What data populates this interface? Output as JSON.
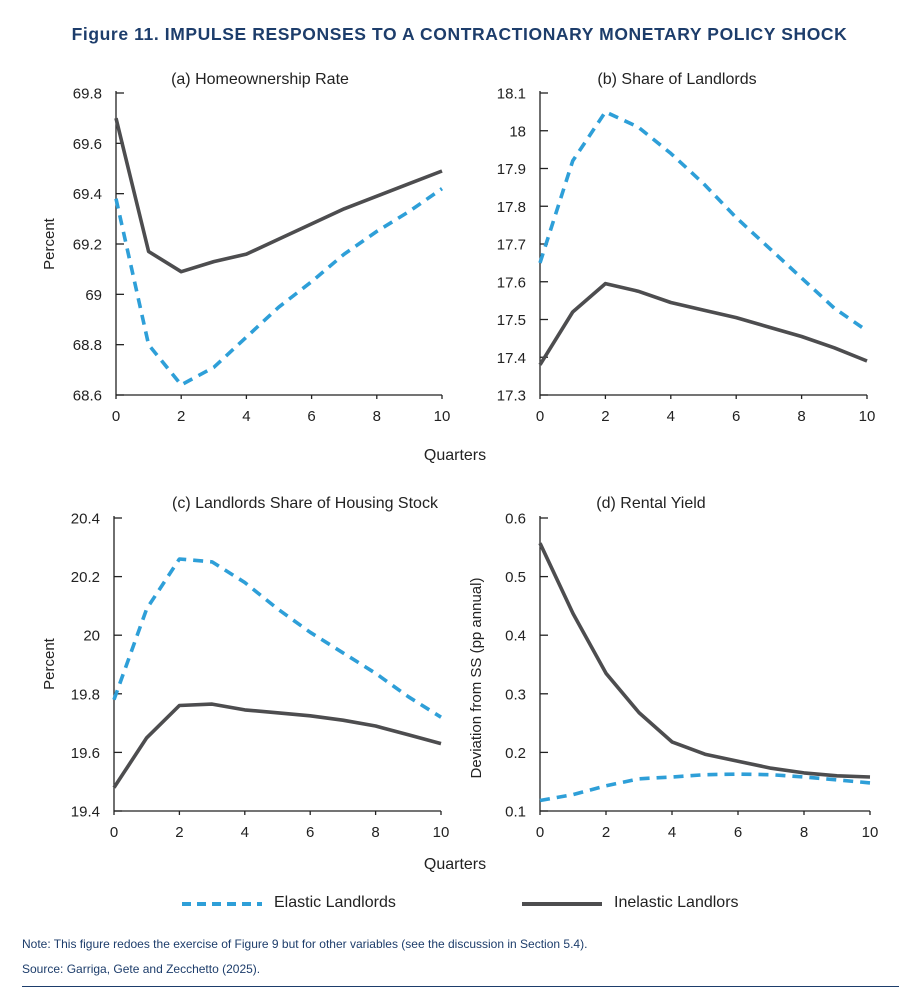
{
  "title": "Figure 11. IMPULSE RESPONSES TO A CONTRACTIONARY MONETARY POLICY SHOCK",
  "note": "Note: This figure redoes the exercise of Figure 9 but for other variables (see the discussion in Section 5.4).",
  "source": "Source: Garriga, Gete and Zecchetto (2025).",
  "shared_xlabel": "Quarters",
  "legend": {
    "elastic": "Elastic Landlords",
    "inelastic": "Inelastic Landlors"
  },
  "colors": {
    "elastic": "#2e9fd8",
    "inelastic": "#4d4d4f",
    "title": "#1d3d6b",
    "axis": "#222222"
  },
  "chart_data": [
    {
      "type": "line",
      "title": "(a) Homeownership Rate",
      "ylabel": "Percent",
      "xlim": [
        0,
        10
      ],
      "ylim": [
        68.6,
        69.8
      ],
      "xticks": [
        0,
        2,
        4,
        6,
        8,
        10
      ],
      "yticks": [
        68.6,
        68.8,
        69,
        69.2,
        69.4,
        69.6,
        69.8
      ],
      "ytick_labels": [
        "68.6",
        "68.8",
        "69",
        "69.2",
        "69.4",
        "69.6",
        "69.8"
      ],
      "x": [
        0,
        1,
        2,
        3,
        4,
        5,
        6,
        7,
        8,
        9,
        10
      ],
      "series": [
        {
          "key": "elastic",
          "values": [
            69.38,
            68.8,
            68.64,
            68.71,
            68.83,
            68.95,
            69.05,
            69.16,
            69.25,
            69.33,
            69.42
          ]
        },
        {
          "key": "inelastic",
          "values": [
            69.7,
            69.17,
            69.09,
            69.13,
            69.16,
            69.22,
            69.28,
            69.34,
            69.39,
            69.44,
            69.49
          ]
        }
      ]
    },
    {
      "type": "line",
      "title": "(b) Share of Landlords",
      "ylabel": "",
      "xlim": [
        0,
        10
      ],
      "ylim": [
        17.3,
        18.1
      ],
      "xticks": [
        0,
        2,
        4,
        6,
        8,
        10
      ],
      "yticks": [
        17.3,
        17.4,
        17.5,
        17.6,
        17.7,
        17.8,
        17.9,
        18,
        18.1
      ],
      "ytick_labels": [
        "17.3",
        "17.4",
        "17.5",
        "17.6",
        "17.7",
        "17.8",
        "17.9",
        "18",
        "18.1"
      ],
      "x": [
        0,
        1,
        2,
        3,
        4,
        5,
        6,
        7,
        8,
        9,
        10
      ],
      "series": [
        {
          "key": "elastic",
          "values": [
            17.65,
            17.92,
            18.05,
            18.01,
            17.94,
            17.86,
            17.77,
            17.69,
            17.61,
            17.53,
            17.47
          ]
        },
        {
          "key": "inelastic",
          "values": [
            17.38,
            17.52,
            17.595,
            17.575,
            17.545,
            17.525,
            17.505,
            17.48,
            17.455,
            17.425,
            17.39
          ]
        }
      ]
    },
    {
      "type": "line",
      "title": "(c) Landlords Share of Housing Stock",
      "ylabel": "Percent",
      "xlim": [
        0,
        10
      ],
      "ylim": [
        19.4,
        20.4
      ],
      "xticks": [
        0,
        2,
        4,
        6,
        8,
        10
      ],
      "yticks": [
        19.4,
        19.6,
        19.8,
        20,
        20.2,
        20.4
      ],
      "ytick_labels": [
        "19.4",
        "19.6",
        "19.8",
        "20",
        "20.2",
        "20.4"
      ],
      "x": [
        0,
        1,
        2,
        3,
        4,
        5,
        6,
        7,
        8,
        9,
        10
      ],
      "series": [
        {
          "key": "elastic",
          "values": [
            19.78,
            20.09,
            20.26,
            20.25,
            20.18,
            20.09,
            20.01,
            19.94,
            19.87,
            19.79,
            19.72
          ]
        },
        {
          "key": "inelastic",
          "values": [
            19.48,
            19.65,
            19.76,
            19.765,
            19.745,
            19.735,
            19.725,
            19.71,
            19.69,
            19.66,
            19.63
          ]
        }
      ]
    },
    {
      "type": "line",
      "title": "(d) Rental Yield",
      "ylabel": "Deviation from SS (pp annual)",
      "xlim": [
        0,
        10
      ],
      "ylim": [
        0.1,
        0.6
      ],
      "xticks": [
        0,
        2,
        4,
        6,
        8,
        10
      ],
      "yticks": [
        0.1,
        0.2,
        0.3,
        0.4,
        0.5,
        0.6
      ],
      "ytick_labels": [
        "0.1",
        "0.2",
        "0.3",
        "0.4",
        "0.5",
        "0.6"
      ],
      "x": [
        0,
        1,
        2,
        3,
        4,
        5,
        6,
        7,
        8,
        9,
        10
      ],
      "series": [
        {
          "key": "elastic",
          "values": [
            0.118,
            0.128,
            0.143,
            0.155,
            0.158,
            0.162,
            0.163,
            0.162,
            0.158,
            0.153,
            0.148
          ]
        },
        {
          "key": "inelastic",
          "values": [
            0.557,
            0.437,
            0.335,
            0.268,
            0.218,
            0.197,
            0.185,
            0.173,
            0.165,
            0.16,
            0.158
          ]
        }
      ]
    }
  ]
}
